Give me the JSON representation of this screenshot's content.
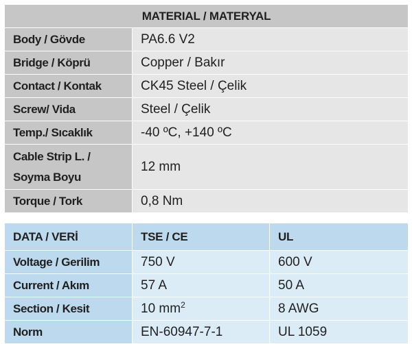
{
  "material": {
    "header": "MATERIAL / MATERYAL",
    "rows": [
      {
        "label": "Body / Gövde",
        "value": "PA6.6 V2"
      },
      {
        "label": "Bridge / Köprü",
        "value": "Copper / Bakır"
      },
      {
        "label": "Contact / Kontak",
        "value": "CK45 Steel / Çelik"
      },
      {
        "label": "Screw/ Vida",
        "value": "Steel / Çelik"
      },
      {
        "label": "Temp./ Sıcaklık",
        "value": "-40 ºC, +140 ºC"
      },
      {
        "label_line1": "Cable Strip L. /",
        "label_line2": "Soyma Boyu",
        "value": "12 mm"
      },
      {
        "label": "Torque / Tork",
        "value": "0,8 Nm"
      }
    ]
  },
  "data": {
    "headers": [
      "DATA / VERİ",
      "TSE / CE",
      "UL"
    ],
    "rows": [
      {
        "label": "Voltage / Gerilim",
        "tse": "750 V",
        "ul": "600 V"
      },
      {
        "label": "Current / Akım",
        "tse": "57 A",
        "ul": "50 A"
      },
      {
        "label": "Section / Kesit",
        "tse": "10 mm",
        "tse_sup": "2",
        "ul": "8 AWG"
      },
      {
        "label": "Norm",
        "tse": "EN-60947-7-1",
        "ul": "UL 1059"
      }
    ]
  }
}
